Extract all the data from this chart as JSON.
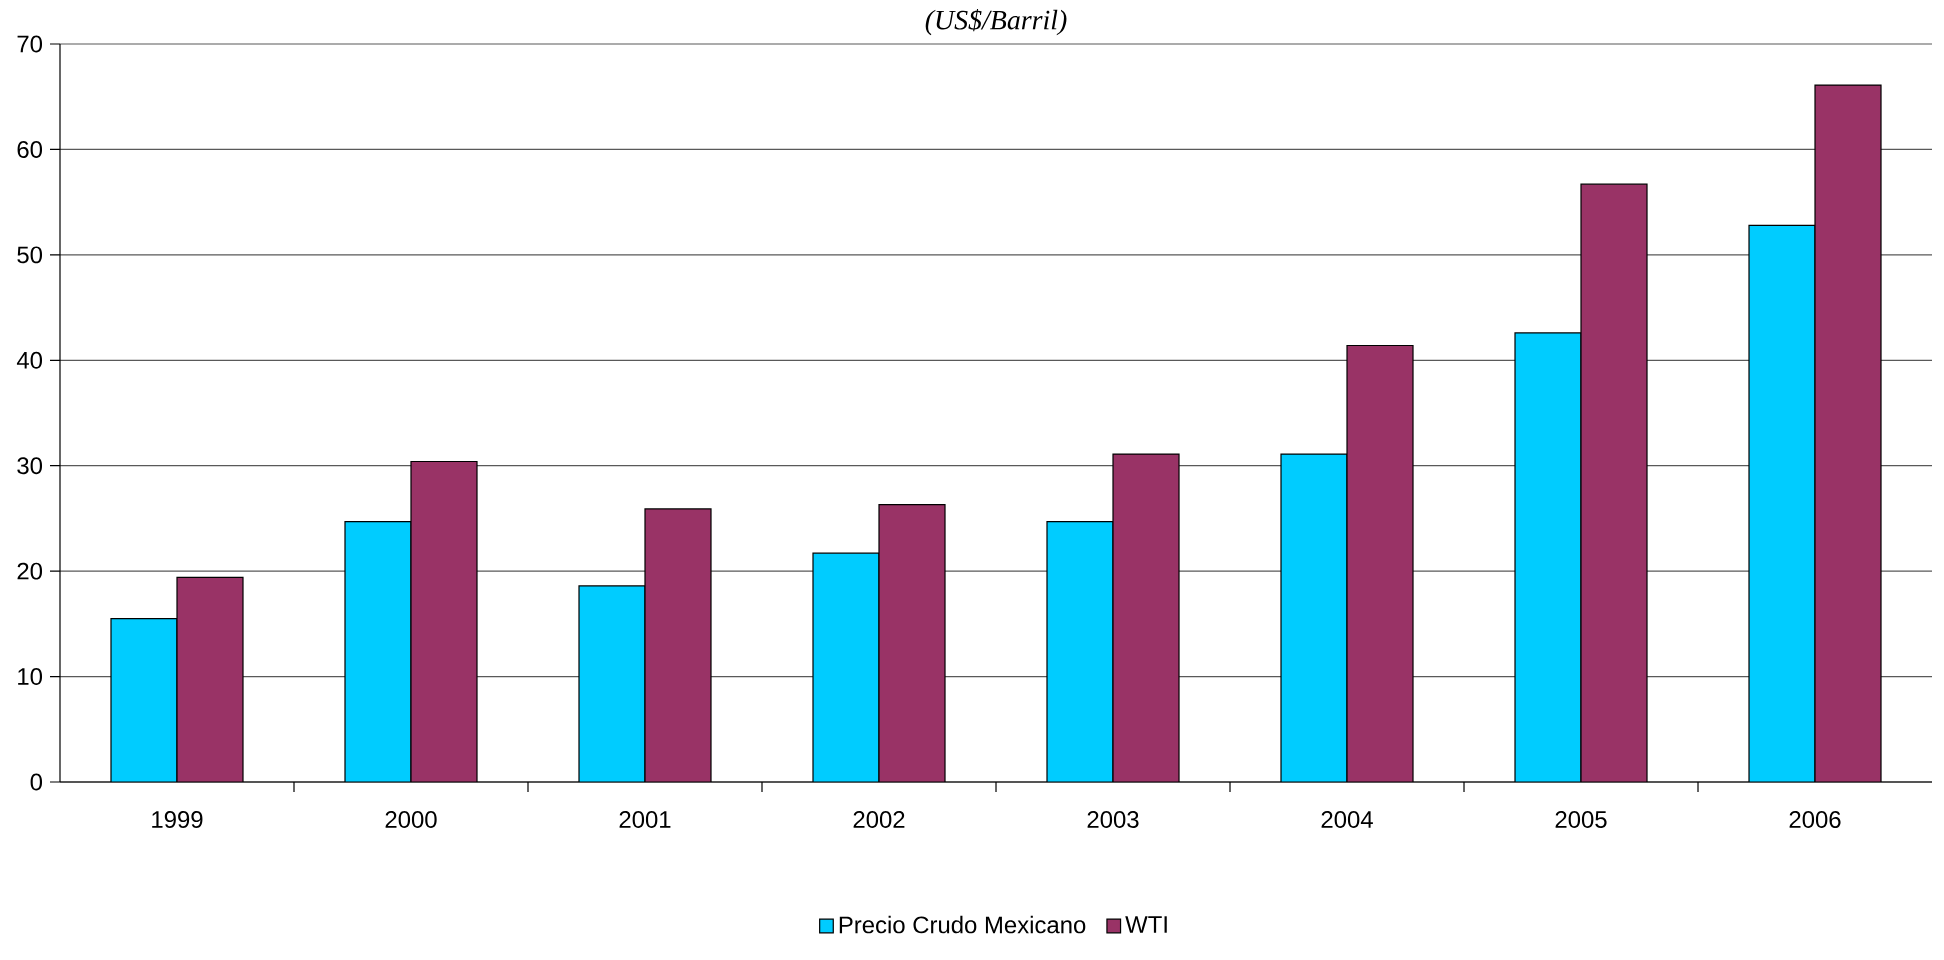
{
  "chart_data": {
    "type": "bar",
    "title": "(US$/Barril)",
    "categories": [
      "1999",
      "2000",
      "2001",
      "2002",
      "2003",
      "2004",
      "2005",
      "2006"
    ],
    "series": [
      {
        "name": "Precio Crudo Mexicano",
        "color": "#00ccff",
        "values": [
          15.5,
          24.7,
          18.6,
          21.7,
          24.7,
          31.1,
          42.6,
          52.8
        ]
      },
      {
        "name": "WTI",
        "color": "#993366",
        "values": [
          19.4,
          30.4,
          25.9,
          26.3,
          31.1,
          41.4,
          56.7,
          66.1
        ]
      }
    ],
    "ylim": [
      0,
      70
    ],
    "yticks": [
      0,
      10,
      20,
      30,
      40,
      50,
      60,
      70
    ],
    "grid": "y",
    "legend": "bottom"
  }
}
